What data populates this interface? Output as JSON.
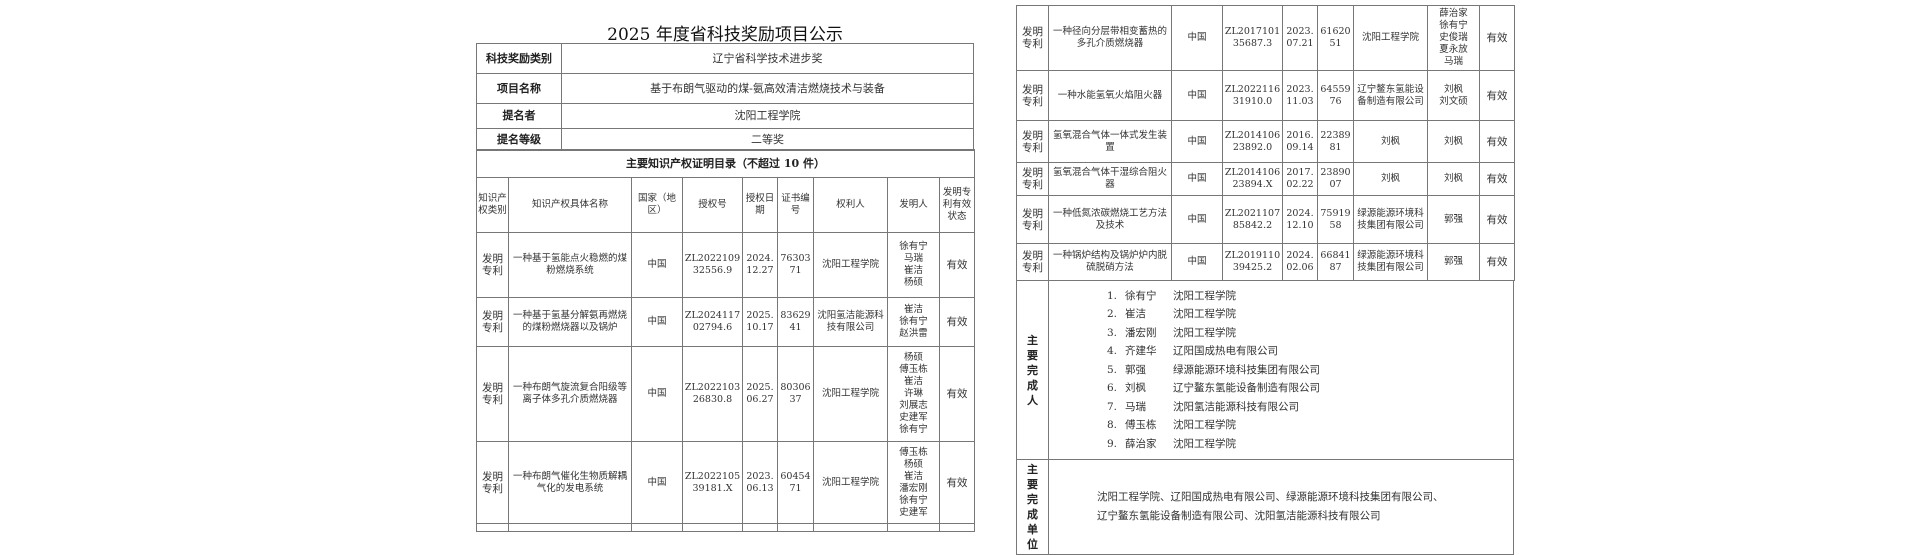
{
  "left_page": {
    "title": "2025 年度省科技奖励项目公示",
    "info": [
      {
        "label": "科技奖励类别",
        "value": "辽宁省科学技术进步奖"
      },
      {
        "label": "项目名称",
        "value": "基于布朗气驱动的煤-氨高效清洁燃烧技术与装备"
      },
      {
        "label": "提名者",
        "value": "沈阳工程学院"
      },
      {
        "label": "提名等级",
        "value": "二等奖"
      }
    ],
    "ip_section_title": "主要知识产权证明目录（不超过 10 件）",
    "columns": [
      "知识产权类别",
      "知识产权具体名称",
      "国家（地区）",
      "授权号",
      "授权日期",
      "证书编号",
      "权利人",
      "发明人",
      "发明专利有效状态"
    ],
    "rows": [
      {
        "type": "发明专利",
        "name": "一种基于氢能点火稳燃的煤粉燃烧系统",
        "country": "中国",
        "number": "ZL202210932556.9",
        "date": "2024.12.27",
        "cert": "7630371",
        "owner": "沈阳工程学院",
        "inventors": "徐有宁 马瑞 崔洁 杨硕",
        "status": "有效"
      },
      {
        "type": "发明专利",
        "name": "一种基于氢基分解氨再燃烧的煤粉燃烧器以及锅炉",
        "country": "中国",
        "number": "ZL202411702794.6",
        "date": "2025.10.17",
        "cert": "8362941",
        "owner": "沈阳氢洁能源科技有限公司",
        "inventors": "崔洁 徐有宁 赵洪雷",
        "status": "有效"
      },
      {
        "type": "发明专利",
        "name": "一种布朗气旋流复合阳级等离子体多孔介质燃烧器",
        "country": "中国",
        "number": "ZL202210326830.8",
        "date": "2025.06.27",
        "cert": "8030637",
        "owner": "沈阳工程学院",
        "inventors": "杨硕 傅玉栋 崔洁 许琳 刘展志 史建军 徐有宁",
        "status": "有效"
      },
      {
        "type": "发明专利",
        "name": "一种布朗气催化生物质解耦气化的发电系统",
        "country": "中国",
        "number": "ZL202210539181.X",
        "date": "2023.06.13",
        "cert": "6045471",
        "owner": "沈阳工程学院",
        "inventors": "傅玉栋 杨硕 崔洁 潘宏刚 徐有宁 史建军",
        "status": "有效"
      }
    ]
  },
  "right_page": {
    "rows": [
      {
        "type": "发明专利",
        "name": "一种径向分层带相变蓄热的多孔介质燃烧器",
        "country": "中国",
        "number": "ZL201710135687.3",
        "date": "2023.07.21",
        "cert": "6162051",
        "owner": "沈阳工程学院",
        "inventors": "薛治家 徐有宁 史俊瑞 夏永放 马瑞",
        "status": "有效"
      },
      {
        "type": "发明专利",
        "name": "一种水能氢氧火焰阻火器",
        "country": "中国",
        "number": "ZL202211631910.0",
        "date": "2023.11.03",
        "cert": "6455976",
        "owner": "辽宁鳌东氢能设备制造有限公司",
        "inventors": "刘枫 刘文硕",
        "status": "有效"
      },
      {
        "type": "发明专利",
        "name": "氢氧混合气体一体式发生装置",
        "country": "中国",
        "number": "ZL201410623892.0",
        "date": "2016.09.14",
        "cert": "2238981",
        "owner": "刘枫",
        "inventors": "刘枫",
        "status": "有效"
      },
      {
        "type": "发明专利",
        "name": "氢氧混合气体干湿综合阻火器",
        "country": "中国",
        "number": "ZL201410623894.X",
        "date": "2017.02.22",
        "cert": "2389007",
        "owner": "刘枫",
        "inventors": "刘枫",
        "status": "有效"
      },
      {
        "type": "发明专利",
        "name": "一种低氮浓碳燃烧工艺方法及技术",
        "country": "中国",
        "number": "ZL202110785842.2",
        "date": "2024.12.10",
        "cert": "7591958",
        "owner": "绿源能源环境科技集团有限公司",
        "inventors": "郭强",
        "status": "有效"
      },
      {
        "type": "发明专利",
        "name": "一种锅炉结构及锅炉炉内脱硫脱硝方法",
        "country": "中国",
        "number": "ZL201911039425.2",
        "date": "2024.02.06",
        "cert": "6684187",
        "owner": "绿源能源环境科技集团有限公司",
        "inventors": "郭强",
        "status": "有效"
      }
    ],
    "persons_label": "主要完成人",
    "persons": [
      {
        "no": "1.",
        "name": "徐有宁",
        "org": "沈阳工程学院"
      },
      {
        "no": "2.",
        "name": "崔洁",
        "org": "沈阳工程学院"
      },
      {
        "no": "3.",
        "name": "潘宏刚",
        "org": "沈阳工程学院"
      },
      {
        "no": "4.",
        "name": "齐建华",
        "org": "辽阳国成热电有限公司"
      },
      {
        "no": "5.",
        "name": "郭强",
        "org": "绿源能源环境科技集团有限公司"
      },
      {
        "no": "6.",
        "name": "刘枫",
        "org": "辽宁鳌东氢能设备制造有限公司"
      },
      {
        "no": "7.",
        "name": "马瑞",
        "org": "沈阳氢洁能源科技有限公司"
      },
      {
        "no": "8.",
        "name": "傅玉栋",
        "org": "沈阳工程学院"
      },
      {
        "no": "9.",
        "name": "薛治家",
        "org": "沈阳工程学院"
      }
    ],
    "units_label": "主要完成单位",
    "units_line1": "沈阳工程学院、辽阳国成热电有限公司、绿源能源环境科技集团有限公司、",
    "units_line2": "辽宁鳌东氢能设备制造有限公司、沈阳氢洁能源科技有限公司"
  }
}
